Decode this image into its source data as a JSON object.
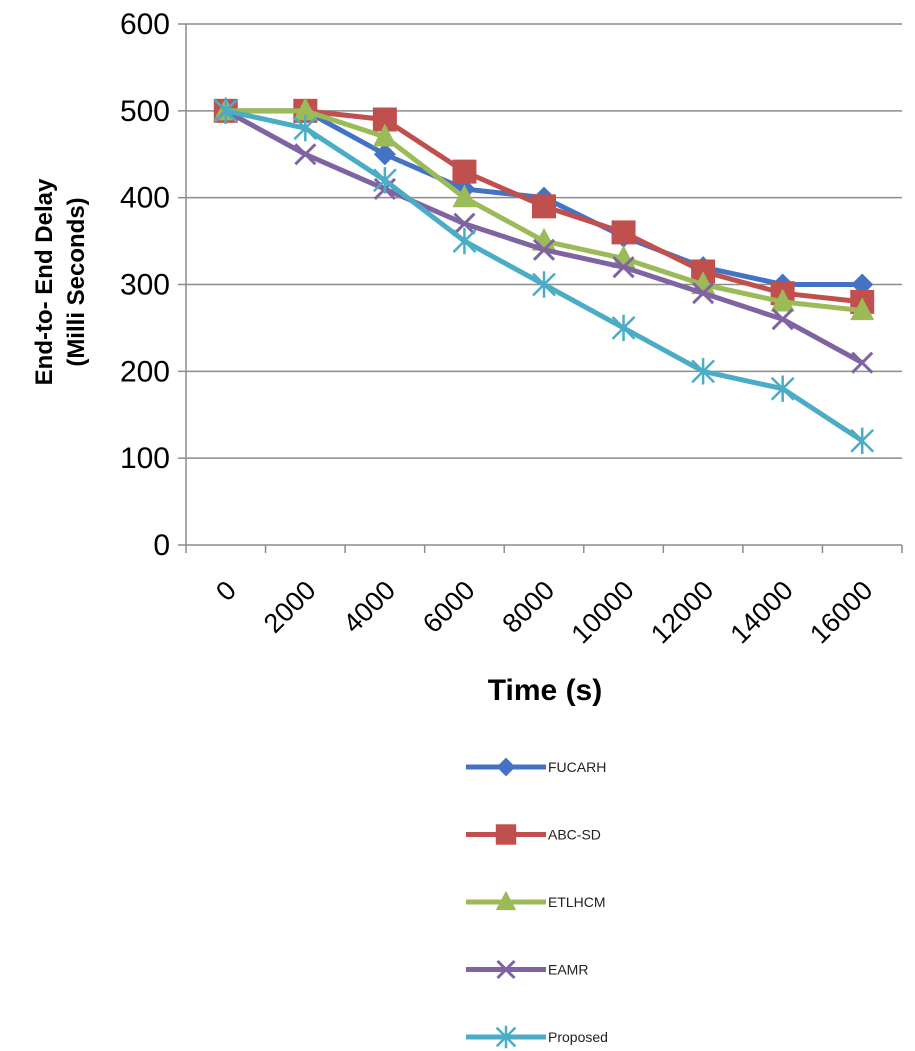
{
  "chart_data": {
    "type": "line",
    "title": "",
    "xlabel": "Time (s)",
    "ylabel_line1": "End-to- End Delay",
    "ylabel_line2": "(Milli Seconds)",
    "categories": [
      "0",
      "2000",
      "4000",
      "6000",
      "8000",
      "10000",
      "12000",
      "14000",
      "16000"
    ],
    "y_ticks": [
      "0",
      "100",
      "200",
      "300",
      "400",
      "500",
      "600"
    ],
    "ylim": [
      0,
      600
    ],
    "grid": true,
    "legend_position": "bottom",
    "series": [
      {
        "name": "FUCARH",
        "color": "#4472C4",
        "marker": "diamond",
        "values": [
          500,
          500,
          450,
          410,
          400,
          355,
          320,
          300,
          300
        ]
      },
      {
        "name": "ABC-SD",
        "color": "#C0504D",
        "marker": "square",
        "values": [
          500,
          500,
          490,
          430,
          390,
          360,
          315,
          290,
          280
        ]
      },
      {
        "name": "ETLHCM",
        "color": "#9BBB59",
        "marker": "triangle",
        "values": [
          500,
          500,
          470,
          400,
          350,
          330,
          300,
          280,
          270
        ]
      },
      {
        "name": "EAMR",
        "color": "#8064A2",
        "marker": "x",
        "values": [
          500,
          450,
          410,
          370,
          340,
          320,
          290,
          260,
          210
        ]
      },
      {
        "name": "Proposed",
        "color": "#4BACC6",
        "marker": "asterisk",
        "values": [
          500,
          480,
          420,
          350,
          300,
          250,
          200,
          180,
          120
        ]
      }
    ]
  }
}
